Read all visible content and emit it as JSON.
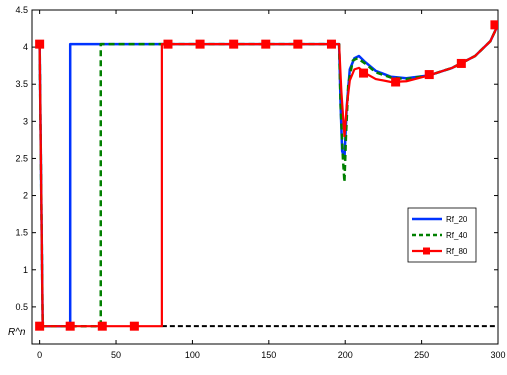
{
  "chart_data": {
    "type": "line",
    "xlim": [
      -5,
      300
    ],
    "ylim": [
      0,
      4.5
    ],
    "x_ticks": [
      0,
      50,
      100,
      150,
      200,
      250,
      300
    ],
    "y_ticks": [
      0.5,
      1,
      1.5,
      2,
      2.5,
      3,
      3.5,
      4,
      4.5
    ],
    "y_tick_labels": [
      "0.5",
      "1",
      "1.5",
      "2",
      "2.5",
      "3",
      "3.5",
      "4",
      "4.5"
    ],
    "legend_position": "right",
    "annotation": "R^n",
    "reference_line": {
      "y": 0.24,
      "x_start": 80,
      "x_end": 300,
      "style": "dashed",
      "color": "#000000"
    },
    "series": [
      {
        "name": "Rf_20",
        "color": "#0033ff",
        "style": "solid",
        "points": [
          [
            0,
            4.04
          ],
          [
            2,
            0.24
          ],
          [
            20,
            0.24
          ],
          [
            20,
            4.04
          ],
          [
            196,
            4.04
          ],
          [
            197,
            3.2
          ],
          [
            198,
            2.6
          ],
          [
            199.5,
            2.5
          ],
          [
            201,
            3.2
          ],
          [
            203,
            3.7
          ],
          [
            206,
            3.85
          ],
          [
            209,
            3.88
          ],
          [
            213,
            3.8
          ],
          [
            220,
            3.68
          ],
          [
            230,
            3.6
          ],
          [
            240,
            3.58
          ],
          [
            255,
            3.62
          ],
          [
            270,
            3.72
          ],
          [
            285,
            3.88
          ],
          [
            295,
            4.08
          ],
          [
            300,
            4.3
          ]
        ]
      },
      {
        "name": "Rf_40",
        "color": "#008000",
        "style": "dashed",
        "points": [
          [
            0,
            4.04
          ],
          [
            2,
            0.24
          ],
          [
            40,
            0.24
          ],
          [
            40,
            4.04
          ],
          [
            196,
            4.04
          ],
          [
            197,
            3.2
          ],
          [
            198.5,
            2.5
          ],
          [
            199.5,
            2.18
          ],
          [
            200.5,
            2.8
          ],
          [
            202,
            3.5
          ],
          [
            205,
            3.82
          ],
          [
            208,
            3.85
          ],
          [
            213,
            3.78
          ],
          [
            220,
            3.66
          ],
          [
            230,
            3.59
          ],
          [
            240,
            3.57
          ],
          [
            255,
            3.62
          ],
          [
            270,
            3.72
          ],
          [
            285,
            3.88
          ],
          [
            295,
            4.08
          ],
          [
            300,
            4.3
          ]
        ]
      },
      {
        "name": "Rf_80",
        "color": "#ff0000",
        "style": "solid-marker",
        "points": [
          [
            0,
            4.04
          ],
          [
            2,
            0.24
          ],
          [
            80,
            0.24
          ],
          [
            80,
            4.04
          ],
          [
            196,
            4.04
          ],
          [
            197.5,
            3.4
          ],
          [
            199.5,
            2.8
          ],
          [
            201,
            3.2
          ],
          [
            203,
            3.55
          ],
          [
            206,
            3.7
          ],
          [
            209,
            3.72
          ],
          [
            213,
            3.65
          ],
          [
            220,
            3.57
          ],
          [
            230,
            3.53
          ],
          [
            240,
            3.54
          ],
          [
            255,
            3.62
          ],
          [
            270,
            3.72
          ],
          [
            285,
            3.88
          ],
          [
            295,
            4.08
          ],
          [
            300,
            4.3
          ]
        ],
        "markers": [
          [
            0,
            4.04
          ],
          [
            0,
            0.24
          ],
          [
            20,
            0.24
          ],
          [
            41,
            0.24
          ],
          [
            62,
            0.24
          ],
          [
            84,
            4.04
          ],
          [
            105,
            4.04
          ],
          [
            127,
            4.04
          ],
          [
            148,
            4.04
          ],
          [
            169,
            4.04
          ],
          [
            191,
            4.04
          ],
          [
            212,
            3.65
          ],
          [
            233,
            3.53
          ],
          [
            255,
            3.63
          ],
          [
            276,
            3.78
          ],
          [
            298,
            4.3
          ]
        ]
      }
    ]
  }
}
